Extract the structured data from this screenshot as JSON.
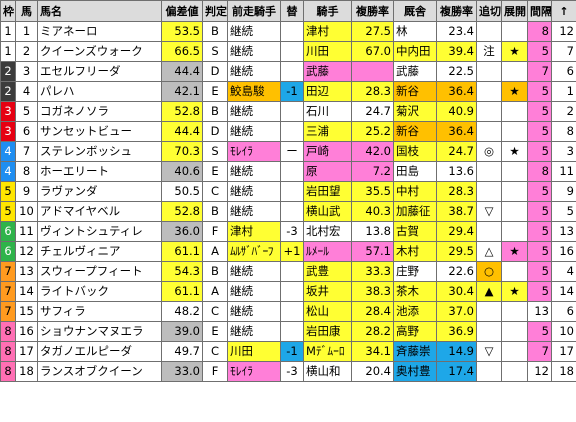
{
  "headers": [
    "枠",
    "馬",
    "馬名",
    "偏差値",
    "判定",
    "前走騎手",
    "替",
    "騎手",
    "複勝率",
    "厩舎",
    "複勝率",
    "追切",
    "展開",
    "間隔",
    "↑"
  ],
  "colors": {
    "yellow": "#ffff33",
    "pink": "#ff7fd8",
    "gray": "#bdbdbd",
    "orange": "#ffc000",
    "blue": "#1ea7e8"
  },
  "rows": [
    {
      "waku": "1",
      "uma": "1",
      "name": "ミアネーロ",
      "score": "53.5",
      "grade": "B",
      "prev": "継続",
      "change": "",
      "jockey": "津村",
      "jrate": "27.5",
      "trainer": "林",
      "trate": "23.4",
      "oikiri": "",
      "tenkai": "",
      "interval": "8",
      "up": "12"
    },
    {
      "waku": "1",
      "uma": "2",
      "name": "クイーンズウォーク",
      "score": "66.5",
      "grade": "S",
      "prev": "継続",
      "change": "",
      "jockey": "川田",
      "jrate": "67.0",
      "trainer": "中内田",
      "trate": "39.4",
      "oikiri": "注",
      "tenkai": "★",
      "interval": "5",
      "up": "7"
    },
    {
      "waku": "2",
      "uma": "3",
      "name": "エセルフリーダ",
      "score": "44.4",
      "grade": "D",
      "prev": "継続",
      "change": "",
      "jockey": "武藤",
      "jrate": "",
      "trainer": "武藤",
      "trate": "22.5",
      "oikiri": "",
      "tenkai": "",
      "interval": "7",
      "up": "6"
    },
    {
      "waku": "2",
      "uma": "4",
      "name": "パレハ",
      "score": "42.1",
      "grade": "E",
      "prev": "鮫島駿",
      "change": "-1",
      "jockey": "田辺",
      "jrate": "28.3",
      "trainer": "新谷",
      "trate": "36.4",
      "oikiri": "",
      "tenkai": "★",
      "interval": "5",
      "up": "1"
    },
    {
      "waku": "3",
      "uma": "5",
      "name": "コガネノソラ",
      "score": "52.8",
      "grade": "B",
      "prev": "継続",
      "change": "",
      "jockey": "石川",
      "jrate": "24.7",
      "trainer": "菊沢",
      "trate": "40.9",
      "oikiri": "",
      "tenkai": "",
      "interval": "5",
      "up": "2"
    },
    {
      "waku": "3",
      "uma": "6",
      "name": "サンセットビュー",
      "score": "44.4",
      "grade": "D",
      "prev": "継続",
      "change": "",
      "jockey": "三浦",
      "jrate": "25.2",
      "trainer": "新谷",
      "trate": "36.4",
      "oikiri": "",
      "tenkai": "",
      "interval": "5",
      "up": "8"
    },
    {
      "waku": "4",
      "uma": "7",
      "name": "ステレンボッシュ",
      "score": "70.3",
      "grade": "S",
      "prev": "ﾓﾚｲﾗ",
      "change": "ー",
      "jockey": "戸崎",
      "jrate": "42.0",
      "trainer": "国枝",
      "trate": "24.7",
      "oikiri": "◎",
      "tenkai": "★",
      "interval": "5",
      "up": "3"
    },
    {
      "waku": "4",
      "uma": "8",
      "name": "ホーエリート",
      "score": "40.6",
      "grade": "E",
      "prev": "継続",
      "change": "",
      "jockey": "原",
      "jrate": "7.2",
      "trainer": "田島",
      "trate": "13.6",
      "oikiri": "",
      "tenkai": "",
      "interval": "8",
      "up": "11"
    },
    {
      "waku": "5",
      "uma": "9",
      "name": "ラヴァンダ",
      "score": "50.5",
      "grade": "C",
      "prev": "継続",
      "change": "",
      "jockey": "岩田望",
      "jrate": "35.5",
      "trainer": "中村",
      "trate": "28.3",
      "oikiri": "",
      "tenkai": "",
      "interval": "5",
      "up": "9"
    },
    {
      "waku": "5",
      "uma": "10",
      "name": "アドマイヤベル",
      "score": "52.8",
      "grade": "B",
      "prev": "継続",
      "change": "",
      "jockey": "横山武",
      "jrate": "40.3",
      "trainer": "加藤征",
      "trate": "38.7",
      "oikiri": "▽",
      "tenkai": "",
      "interval": "5",
      "up": "5"
    },
    {
      "waku": "6",
      "uma": "11",
      "name": "ヴィントシュティレ",
      "score": "36.0",
      "grade": "F",
      "prev": "津村",
      "change": "-3",
      "jockey": "北村宏",
      "jrate": "13.8",
      "trainer": "古賀",
      "trate": "29.4",
      "oikiri": "",
      "tenkai": "",
      "interval": "5",
      "up": "13"
    },
    {
      "waku": "6",
      "uma": "12",
      "name": "チェルヴィニア",
      "score": "61.1",
      "grade": "A",
      "prev": "ﾑﾙｻﾞﾊﾞｰﾌ",
      "change": "+1",
      "jockey": "ﾙﾒｰﾙ",
      "jrate": "57.1",
      "trainer": "木村",
      "trate": "29.5",
      "oikiri": "△",
      "tenkai": "★",
      "interval": "5",
      "up": "16"
    },
    {
      "waku": "7",
      "uma": "13",
      "name": "スウィープフィート",
      "score": "54.3",
      "grade": "B",
      "prev": "継続",
      "change": "",
      "jockey": "武豊",
      "jrate": "33.3",
      "trainer": "庄野",
      "trate": "22.6",
      "oikiri": "○",
      "tenkai": "",
      "interval": "5",
      "up": "4"
    },
    {
      "waku": "7",
      "uma": "14",
      "name": "ライトバック",
      "score": "61.1",
      "grade": "A",
      "prev": "継続",
      "change": "",
      "jockey": "坂井",
      "jrate": "38.3",
      "trainer": "茶木",
      "trate": "30.4",
      "oikiri": "▲",
      "tenkai": "★",
      "interval": "5",
      "up": "14"
    },
    {
      "waku": "7",
      "uma": "15",
      "name": "サフィラ",
      "score": "48.2",
      "grade": "C",
      "prev": "継続",
      "change": "",
      "jockey": "松山",
      "jrate": "28.4",
      "trainer": "池添",
      "trate": "37.0",
      "oikiri": "",
      "tenkai": "",
      "interval": "13",
      "up": "6"
    },
    {
      "waku": "8",
      "uma": "16",
      "name": "ショウナンマヌエラ",
      "score": "39.0",
      "grade": "E",
      "prev": "継続",
      "change": "",
      "jockey": "岩田康",
      "jrate": "28.2",
      "trainer": "高野",
      "trate": "36.9",
      "oikiri": "",
      "tenkai": "",
      "interval": "5",
      "up": "10"
    },
    {
      "waku": "8",
      "uma": "17",
      "name": "タガノエルピーダ",
      "score": "49.7",
      "grade": "C",
      "prev": "川田",
      "change": "-1",
      "jockey": "Mﾃﾞﾑｰﾛ",
      "jrate": "34.1",
      "trainer": "斉藤崇",
      "trate": "14.9",
      "oikiri": "▽",
      "tenkai": "",
      "interval": "7",
      "up": "17"
    },
    {
      "waku": "8",
      "uma": "18",
      "name": "ランスオブクイーン",
      "score": "33.0",
      "grade": "F",
      "prev": "ﾓﾚｲﾗ",
      "change": "-3",
      "jockey": "横山和",
      "jrate": "20.4",
      "trainer": "奥村豊",
      "trate": "17.4",
      "oikiri": "",
      "tenkai": "",
      "interval": "12",
      "up": "18"
    }
  ],
  "waku_colors": {
    "1": {
      "bg": "#ffffff",
      "fg": "#000000"
    },
    "2": {
      "bg": "#3c3c3c",
      "fg": "#ffffff"
    },
    "3": {
      "bg": "#e60012",
      "fg": "#ffffff"
    },
    "4": {
      "bg": "#1f8ef1",
      "fg": "#ffffff"
    },
    "5": {
      "bg": "#ffe600",
      "fg": "#000000"
    },
    "6": {
      "bg": "#2fb34a",
      "fg": "#ffffff"
    },
    "7": {
      "bg": "#ff9a1f",
      "fg": "#000000"
    },
    "8": {
      "bg": "#ff6fb4",
      "fg": "#000000"
    }
  }
}
